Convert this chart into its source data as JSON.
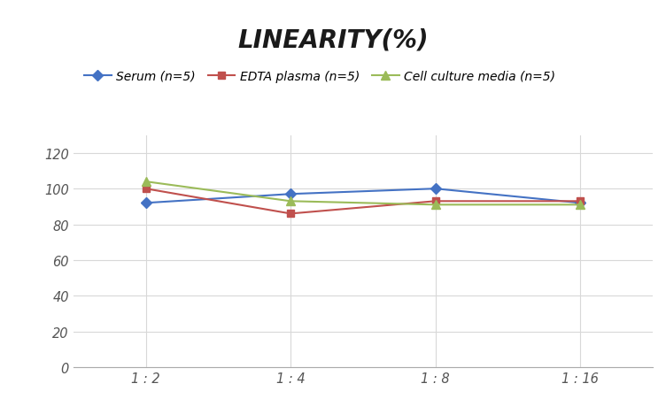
{
  "title": "LINEARITY(%)",
  "x_labels": [
    "1 : 2",
    "1 : 4",
    "1 : 8",
    "1 : 16"
  ],
  "series": [
    {
      "label": "Serum (n=5)",
      "values": [
        92,
        97,
        100,
        92
      ],
      "color": "#4472C4",
      "marker": "D",
      "marker_size": 6,
      "linewidth": 1.5
    },
    {
      "label": "EDTA plasma (n=5)",
      "values": [
        100,
        86,
        93,
        93
      ],
      "color": "#C0504D",
      "marker": "s",
      "marker_size": 6,
      "linewidth": 1.5
    },
    {
      "label": "Cell culture media (n=5)",
      "values": [
        104,
        93,
        91,
        91
      ],
      "color": "#9BBB59",
      "marker": "^",
      "marker_size": 7,
      "linewidth": 1.5
    }
  ],
  "ylim": [
    0,
    130
  ],
  "yticks": [
    0,
    20,
    40,
    60,
    80,
    100,
    120
  ],
  "background_color": "#ffffff",
  "grid_color": "#d8d8d8",
  "title_fontsize": 20,
  "legend_fontsize": 10,
  "tick_fontsize": 10.5
}
